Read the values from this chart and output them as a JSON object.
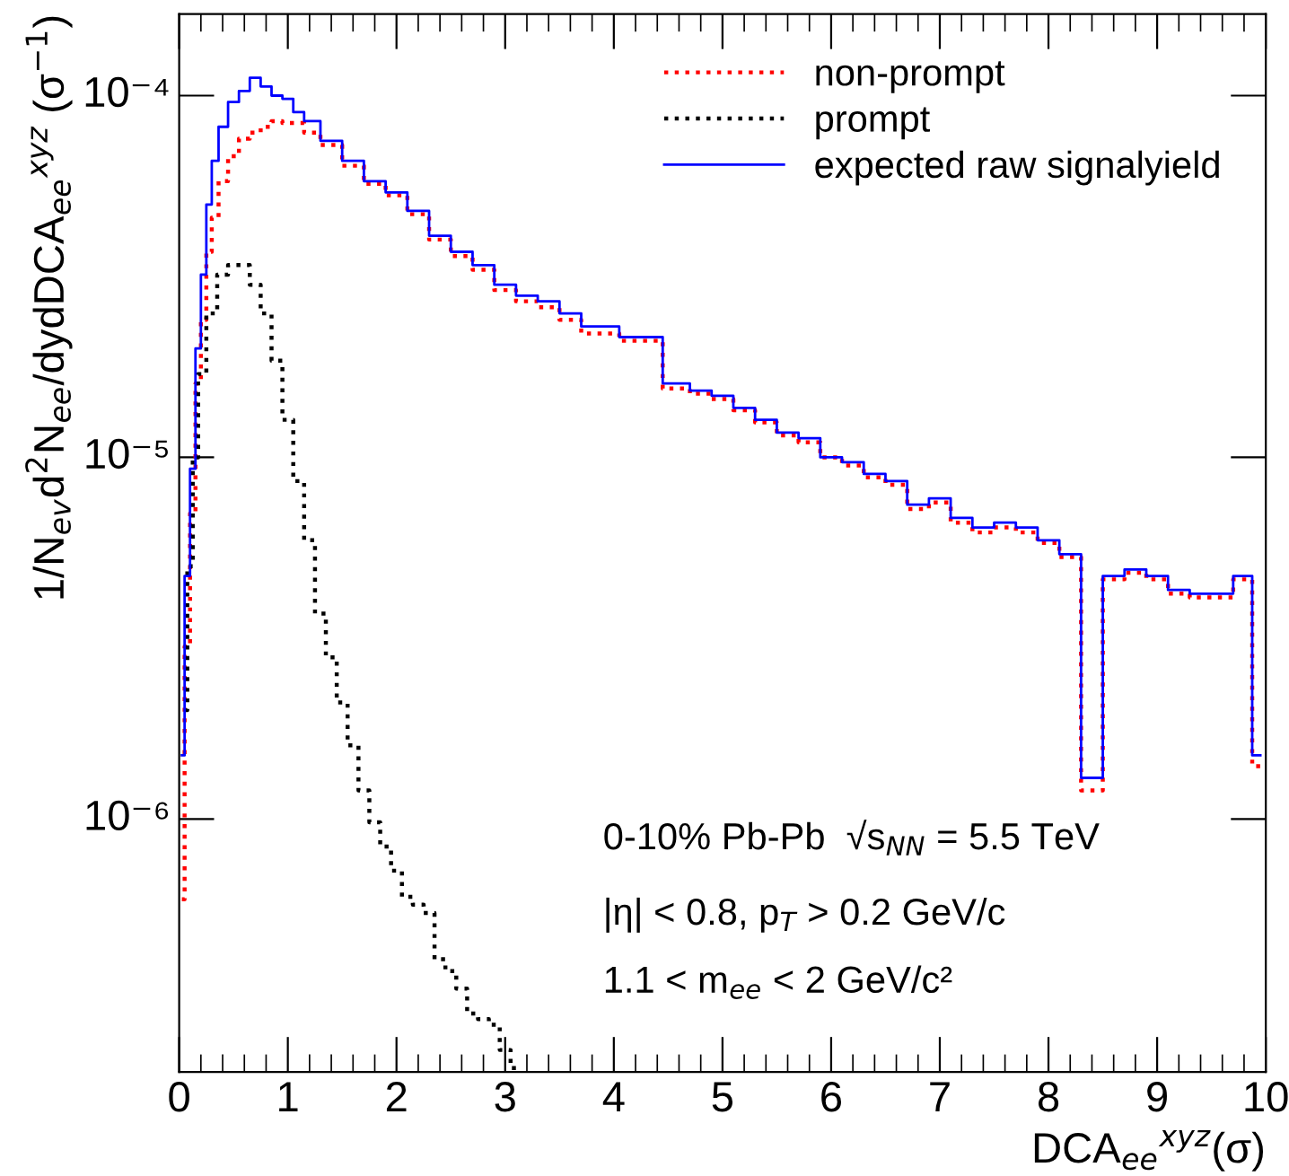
{
  "chart_data": {
    "type": "step",
    "xlabel": "DCA$_{ee}$$^{xyz}$(σ)",
    "ylabel": "1/N$_{ev}$d$^{2}$N$_{ee}$/dydDCA$_{ee}$$^{xyz}$ (σ$^{−1}$)",
    "log": "y",
    "xlim": [
      0,
      10
    ],
    "ylim": [
      2e-07,
      0.000168
    ],
    "xticks": [
      0,
      1,
      2,
      3,
      4,
      5,
      6,
      7,
      8,
      9,
      10
    ],
    "yticks": [
      {
        "value": 1e-06,
        "label": "10⁻⁶"
      },
      {
        "value": 1e-05,
        "label": "10⁻⁵"
      },
      {
        "value": 0.0001,
        "label": "10⁻⁴"
      }
    ],
    "grid": false,
    "legend": "top right",
    "annotations": [
      "0-10% Pb-Pb  √s$_{NN}$ = 5.5 TeV",
      "|η| < 0.8, p$_{T}$ > 0.2 GeV/c",
      "1.1 < m$_{ee}$ < 2 GeV/c²"
    ],
    "series": [
      {
        "name": "non-prompt",
        "color": "#ff0000",
        "line_style": "dotted",
        "x": [
          0.025,
          0.075,
          0.125,
          0.175,
          0.225,
          0.275,
          0.325,
          0.4,
          0.5,
          0.6,
          0.7,
          0.8,
          0.9,
          1.0,
          1.1,
          1.2,
          1.4,
          1.6,
          1.8,
          2.0,
          2.2,
          2.4,
          2.6,
          2.8,
          3.0,
          3.2,
          3.4,
          3.6,
          3.8,
          4.3,
          4.6,
          4.8,
          5.0,
          5.2,
          5.4,
          5.6,
          5.8,
          6.0,
          6.2,
          6.4,
          6.6,
          6.8,
          7.0,
          7.2,
          7.4,
          7.6,
          7.8,
          8.0,
          8.2,
          8.4,
          8.6,
          8.8,
          9.0,
          9.2,
          9.4,
          9.6,
          9.8,
          9.95
        ],
        "values": [
          6e-07,
          3e-06,
          7e-06,
          1.6e-05,
          2.4e-05,
          3.7e-05,
          4.6e-05,
          5.8e-05,
          6.8e-05,
          7.6e-05,
          7.9e-05,
          8.2e-05,
          8.5e-05,
          8.4e-05,
          8.4e-05,
          7.9e-05,
          7.3e-05,
          6.4e-05,
          5.7e-05,
          5.3e-05,
          4.7e-05,
          4e-05,
          3.6e-05,
          3.3e-05,
          2.9e-05,
          2.7e-05,
          2.6e-05,
          2.4e-05,
          2.2e-05,
          2.1e-05,
          1.55e-05,
          1.5e-05,
          1.45e-05,
          1.35e-05,
          1.25e-05,
          1.15e-05,
          1.1e-05,
          1e-05,
          9.5e-06,
          8.8e-06,
          8.4e-06,
          7.2e-06,
          7.5e-06,
          6.6e-06,
          6.2e-06,
          6.4e-06,
          6.2e-06,
          5.8e-06,
          5.3e-06,
          1.2e-06,
          4.6e-06,
          4.8e-06,
          4.6e-06,
          4.2e-06,
          4.1e-06,
          4.1e-06,
          4.6e-06,
          1.4e-06
        ]
      },
      {
        "name": "prompt",
        "color": "#000000",
        "line_style": "dotted",
        "x": [
          0.05,
          0.1,
          0.15,
          0.2,
          0.3,
          0.4,
          0.5,
          0.6,
          0.7,
          0.8,
          0.9,
          1.0,
          1.1,
          1.2,
          1.3,
          1.4,
          1.5,
          1.6,
          1.7,
          1.8,
          1.9,
          2.0,
          2.1,
          2.2,
          2.3,
          2.4,
          2.5,
          2.6,
          2.7,
          2.8,
          2.9,
          3.0,
          3.1
        ],
        "values": [
          2e-06,
          5e-06,
          1e-05,
          1.7e-05,
          2.5e-05,
          3.2e-05,
          3.4e-05,
          3.4e-05,
          3e-05,
          2.5e-05,
          1.85e-05,
          1.27e-05,
          8.6e-06,
          5.9e-06,
          3.7e-06,
          2.8e-06,
          2.1e-06,
          1.6e-06,
          1.2e-06,
          9.8e-07,
          8.4e-07,
          7.2e-07,
          6.1e-07,
          5.8e-07,
          5.5e-07,
          4.1e-07,
          3.8e-07,
          3.4e-07,
          2.9e-07,
          2.8e-07,
          2.7e-07,
          2.3e-07,
          2.05e-07
        ]
      },
      {
        "name": "expected raw signalyield",
        "color": "#0000ff",
        "line_style": "solid",
        "x": [
          0.025,
          0.075,
          0.125,
          0.175,
          0.225,
          0.275,
          0.325,
          0.4,
          0.5,
          0.6,
          0.7,
          0.8,
          0.9,
          1.0,
          1.1,
          1.2,
          1.4,
          1.6,
          1.8,
          2.0,
          2.2,
          2.4,
          2.6,
          2.8,
          3.0,
          3.2,
          3.4,
          3.6,
          3.8,
          4.3,
          4.6,
          4.8,
          5.0,
          5.2,
          5.4,
          5.6,
          5.8,
          6.0,
          6.2,
          6.4,
          6.6,
          6.8,
          7.0,
          7.2,
          7.4,
          7.6,
          7.8,
          8.0,
          8.2,
          8.4,
          8.6,
          8.8,
          9.0,
          9.2,
          9.4,
          9.6,
          9.8,
          9.95
        ],
        "values": [
          1.5e-06,
          4.7e-06,
          9.3e-06,
          2e-05,
          3.2e-05,
          5e-05,
          6.6e-05,
          8.2e-05,
          9.6e-05,
          0.000103,
          0.000112,
          0.000106,
          0.0001,
          9.8e-05,
          9e-05,
          8.5e-05,
          7.5e-05,
          6.6e-05,
          5.8e-05,
          5.4e-05,
          4.8e-05,
          4.1e-05,
          3.7e-05,
          3.4e-05,
          3e-05,
          2.8e-05,
          2.7e-05,
          2.5e-05,
          2.3e-05,
          2.15e-05,
          1.6e-05,
          1.53e-05,
          1.48e-05,
          1.37e-05,
          1.27e-05,
          1.17e-05,
          1.13e-05,
          1e-05,
          9.7e-06,
          9e-06,
          8.6e-06,
          7.4e-06,
          7.7e-06,
          6.8e-06,
          6.4e-06,
          6.6e-06,
          6.4e-06,
          5.9e-06,
          5.4e-06,
          1.3e-06,
          4.7e-06,
          4.9e-06,
          4.7e-06,
          4.3e-06,
          4.2e-06,
          4.2e-06,
          4.7e-06,
          1.5e-06
        ]
      }
    ]
  }
}
